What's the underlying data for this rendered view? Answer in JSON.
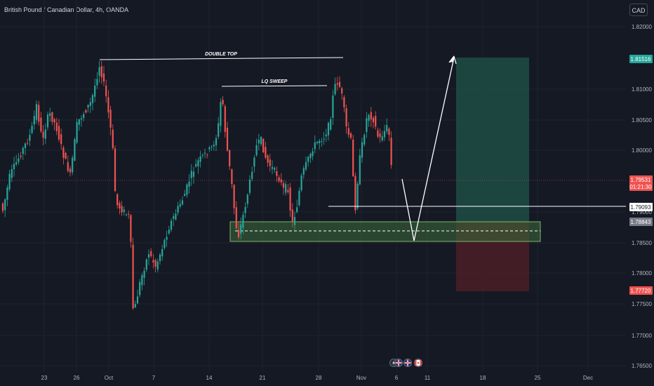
{
  "header": {
    "symbol_title": "British Pound / Canadian Dollar, 4h, OANDA",
    "currency": "CAD"
  },
  "colors": {
    "background": "#151924",
    "up": "#26a69a",
    "down": "#ef5350",
    "grid": "#1f2331",
    "text": "#b2b5be",
    "profit_zone": "#1d4d44",
    "loss_zone": "#4a1f26",
    "demand_zone": "#3d6b3a"
  },
  "price_axis": {
    "ticks": [
      "1.82000",
      "1.81000",
      "1.80500",
      "1.80000",
      "1.79000",
      "1.78500",
      "1.78000",
      "1.77500",
      "1.77000",
      "1.76500"
    ],
    "labels": [
      {
        "text": "1.81516",
        "color": "#26a69a"
      },
      {
        "text": "1.79531",
        "subtext": "01:21:30",
        "color": "#ef5350"
      },
      {
        "text": "1.79093",
        "color": "#ffffff"
      },
      {
        "text": "1.78843",
        "color": "#787b86"
      },
      {
        "text": "1.77720",
        "color": "#ef5350"
      }
    ]
  },
  "time_axis": {
    "ticks": [
      "23",
      "26",
      "Oct",
      "7",
      "14",
      "21",
      "28",
      "Nov",
      "6",
      "11",
      "18",
      "25",
      "Dec"
    ]
  },
  "annotations": {
    "double_top": "DOUBLE TOP",
    "lq_sweep": "LQ SWEEP"
  },
  "event_icons": [
    "lightning-icon",
    "uk-flag-icon",
    "uk-flag-icon",
    "canada-flag-icon"
  ]
}
